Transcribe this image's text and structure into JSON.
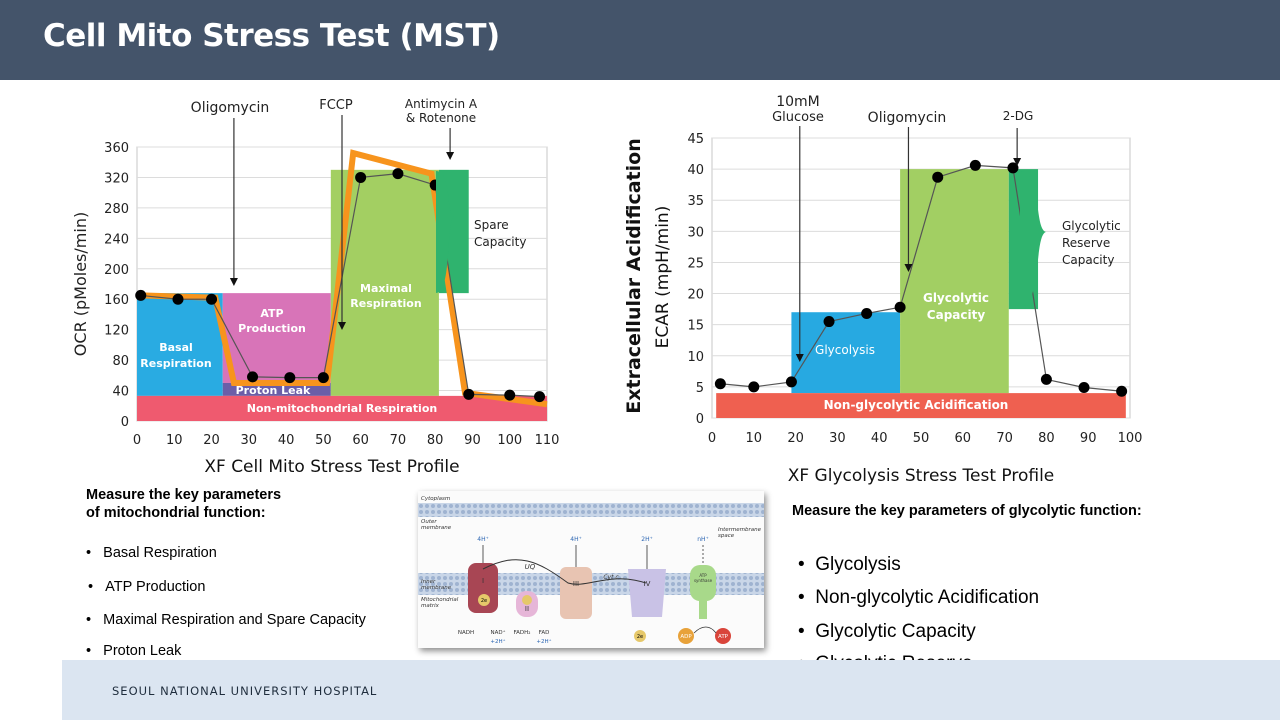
{
  "slide": {
    "title": "Cell Mito Stress Test (MST)",
    "footer": "SEOUL NATIONAL UNIVERSITY HOSPITAL"
  },
  "mito": {
    "profile_title": "XF Cell Mito Stress Test Profile",
    "ylabel": "OCR (pMoles/min)",
    "injections": [
      "Oligomycin",
      "FCCP",
      "Antimycin A",
      "& Rotenone"
    ],
    "regions": {
      "basal": [
        "Basal",
        "Respiration"
      ],
      "atp": [
        "ATP",
        "Production"
      ],
      "proton": "Proton Leak",
      "maximal": [
        "Maximal",
        "Respiration"
      ],
      "spare": [
        "Spare",
        "Capacity"
      ],
      "nonmito": "Non-mitochondrial Respiration"
    },
    "heading": [
      "Measure the key parameters",
      "of mitochondrial function:"
    ],
    "bullets": [
      "Basal Respiration",
      "ATP Production",
      "Maximal Respiration and Spare Capacity",
      "Proton Leak"
    ]
  },
  "glyco": {
    "profile_title": "XF Glycolysis Stress Test Profile",
    "ylabel1": "Extracellular Acidification",
    "ylabel2": "ECAR (mpH/min)",
    "injections": [
      "10mM",
      "Glucose",
      "Oligomycin",
      "2-DG"
    ],
    "regions": {
      "glycolysis": "Glycolysis",
      "capacity": [
        "Glycolytic",
        "Capacity"
      ],
      "reserve": [
        "Glycolytic",
        "Reserve",
        "Capacity"
      ],
      "nonglyco": "Non-glycolytic Acidification"
    },
    "heading": "Measure the key parameters of glycolytic function:",
    "bullets": [
      "Glycolysis",
      "Non-glycolytic Acidification",
      "Glycolytic Capacity",
      "Glycolytic Reserve"
    ]
  },
  "diagram": {
    "labels": [
      "Cytoplasm",
      "Outer",
      "membrane",
      "Intermembrane",
      "space",
      "Inner",
      "membrane",
      "Mitochondrial",
      "matrix"
    ],
    "complexes": [
      "I",
      "II",
      "III",
      "IV",
      "UQ",
      "Cyt c",
      "ATP",
      "synthase"
    ],
    "protons": [
      "4H⁺",
      "4H⁺",
      "2H⁺",
      "nH⁺"
    ],
    "bottom": [
      "NADH",
      "NAD⁺",
      "+2H⁺",
      "FADH₂",
      "FAD",
      "+2H⁺"
    ],
    "electron": "2e",
    "adp": "ADP",
    "atp": "ATP"
  },
  "chart_data": [
    {
      "type": "line",
      "title": "XF Cell Mito Stress Test Profile",
      "ylabel": "OCR (pMoles/min)",
      "xlabel": "",
      "xlim": [
        0,
        110
      ],
      "ylim": [
        0,
        360
      ],
      "xticks": [
        0,
        10,
        20,
        30,
        40,
        50,
        60,
        70,
        80,
        90,
        100,
        110
      ],
      "yticks": [
        0,
        40,
        80,
        120,
        160,
        200,
        240,
        280,
        320,
        360
      ],
      "series": [
        {
          "points": [
            [
              1,
              165
            ],
            [
              11,
              160
            ],
            [
              20,
              160
            ],
            [
              31,
              58
            ],
            [
              41,
              57
            ],
            [
              50,
              57
            ],
            [
              60,
              320
            ],
            [
              70,
              325
            ],
            [
              80,
              310
            ],
            [
              89,
              35
            ],
            [
              100,
              34
            ],
            [
              108,
              32
            ]
          ]
        }
      ],
      "trend": [
        [
          1,
          165
        ],
        [
          21,
          162
        ],
        [
          26,
          50
        ],
        [
          51,
          50
        ],
        [
          58,
          352
        ],
        [
          79,
          325
        ],
        [
          88,
          37
        ],
        [
          110,
          22
        ]
      ],
      "injections": [
        {
          "label": "Oligomycin",
          "x": 26
        },
        {
          "label": "FCCP",
          "x": 55
        },
        {
          "label": "Antimycin A & Rotenone",
          "x": 84
        }
      ],
      "regions": [
        {
          "label": "Basal Respiration",
          "x": [
            0,
            23
          ],
          "y": [
            33,
            168
          ],
          "color": "#29abe2"
        },
        {
          "label": "ATP Production",
          "x": [
            23,
            52
          ],
          "y": [
            50,
            168
          ],
          "color": "#d874b8"
        },
        {
          "label": "Proton Leak",
          "x": [
            23,
            52
          ],
          "y": [
            33,
            50
          ],
          "color": "#6b5ea8"
        },
        {
          "label": "Maximal Respiration",
          "x": [
            52,
            81
          ],
          "y": [
            33,
            330
          ],
          "color": "#a3cf62"
        },
        {
          "label": "Spare Capacity",
          "x": [
            81,
            89
          ],
          "y": [
            168,
            330
          ],
          "color": "#2fb36e"
        },
        {
          "label": "Non-mitochondrial Respiration",
          "x": [
            0,
            110
          ],
          "y": [
            0,
            33
          ],
          "color": "#ef5a6f"
        }
      ]
    },
    {
      "type": "line",
      "title": "XF Glycolysis Stress Test Profile",
      "ylabel": "Extracellular Acidification ECAR (mpH/min)",
      "xlabel": "",
      "xlim": [
        0,
        100
      ],
      "ylim": [
        0,
        45
      ],
      "xticks": [
        0,
        10,
        20,
        30,
        40,
        50,
        60,
        70,
        80,
        90,
        100
      ],
      "yticks": [
        0,
        5,
        10,
        15,
        20,
        25,
        30,
        35,
        40,
        45
      ],
      "series": [
        {
          "points": [
            [
              2,
              5.5
            ],
            [
              10,
              5
            ],
            [
              19,
              5.8
            ],
            [
              28,
              15.5
            ],
            [
              37,
              16.8
            ],
            [
              45,
              17.8
            ],
            [
              54,
              38.7
            ],
            [
              63,
              40.6
            ],
            [
              72,
              40.2
            ],
            [
              80,
              6.2
            ],
            [
              89,
              4.9
            ],
            [
              98,
              4.3
            ]
          ]
        }
      ],
      "injections": [
        {
          "label": "10mM Glucose",
          "x": 21
        },
        {
          "label": "Oligomycin",
          "x": 47
        },
        {
          "label": "2-DG",
          "x": 73
        }
      ],
      "regions": [
        {
          "label": "Glycolysis",
          "x": [
            19,
            45
          ],
          "y": [
            4,
            17
          ],
          "color": "#27a9e1"
        },
        {
          "label": "Glycolytic Capacity",
          "x": [
            45,
            71
          ],
          "y": [
            4,
            40
          ],
          "color": "#a2cf63"
        },
        {
          "label": "Glycolytic Reserve Capacity",
          "x": [
            71,
            78
          ],
          "y": [
            17.5,
            40
          ],
          "color": "#2fb36e"
        },
        {
          "label": "Non-glycolytic Acidification",
          "x": [
            1,
            99
          ],
          "y": [
            0,
            4
          ],
          "color": "#ef6050"
        }
      ]
    }
  ]
}
